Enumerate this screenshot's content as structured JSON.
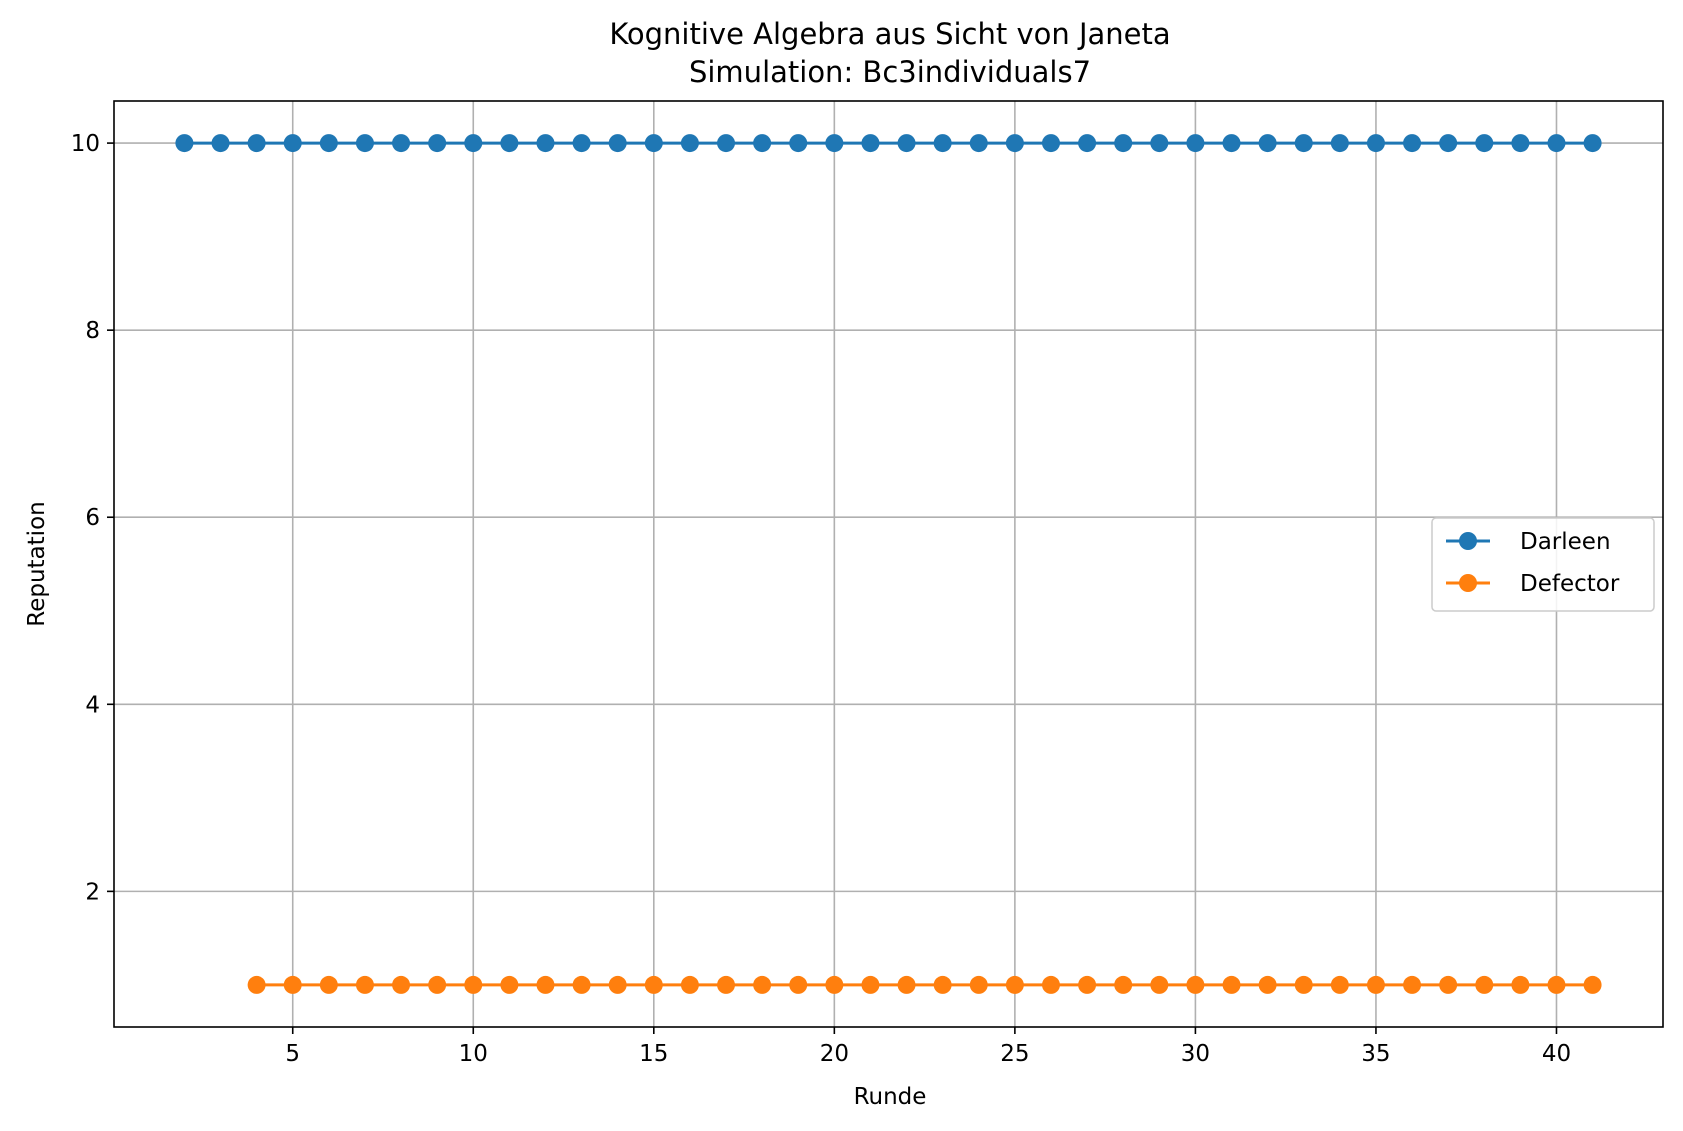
{
  "chart_data": {
    "type": "line",
    "title": "Kognitive Algebra aus Sicht von Janeta",
    "subtitle": "Simulation: Bc3individuals7",
    "xlabel": "Runde",
    "ylabel": "Reputation",
    "xlim": [
      0.05,
      42.95
    ],
    "ylim": [
      0.55,
      10.45
    ],
    "xticks": [
      5,
      10,
      15,
      20,
      25,
      30,
      35,
      40
    ],
    "yticks": [
      2,
      4,
      6,
      8,
      10
    ],
    "grid": true,
    "legend_position": "center-right",
    "series": [
      {
        "name": "Darleen",
        "color": "#1f77b4",
        "marker": "circle",
        "x": [
          2,
          3,
          4,
          5,
          6,
          7,
          8,
          9,
          10,
          11,
          12,
          13,
          14,
          15,
          16,
          17,
          18,
          19,
          20,
          21,
          22,
          23,
          24,
          25,
          26,
          27,
          28,
          29,
          30,
          31,
          32,
          33,
          34,
          35,
          36,
          37,
          38,
          39,
          40,
          41
        ],
        "y": [
          10,
          10,
          10,
          10,
          10,
          10,
          10,
          10,
          10,
          10,
          10,
          10,
          10,
          10,
          10,
          10,
          10,
          10,
          10,
          10,
          10,
          10,
          10,
          10,
          10,
          10,
          10,
          10,
          10,
          10,
          10,
          10,
          10,
          10,
          10,
          10,
          10,
          10,
          10,
          10
        ]
      },
      {
        "name": "Defector",
        "color": "#ff7f0e",
        "marker": "circle",
        "x": [
          4,
          5,
          6,
          7,
          8,
          9,
          10,
          11,
          12,
          13,
          14,
          15,
          16,
          17,
          18,
          19,
          20,
          21,
          22,
          23,
          24,
          25,
          26,
          27,
          28,
          29,
          30,
          31,
          32,
          33,
          34,
          35,
          36,
          37,
          38,
          39,
          40,
          41
        ],
        "y": [
          1,
          1,
          1,
          1,
          1,
          1,
          1,
          1,
          1,
          1,
          1,
          1,
          1,
          1,
          1,
          1,
          1,
          1,
          1,
          1,
          1,
          1,
          1,
          1,
          1,
          1,
          1,
          1,
          1,
          1,
          1,
          1,
          1,
          1,
          1,
          1,
          1,
          1
        ]
      }
    ]
  }
}
